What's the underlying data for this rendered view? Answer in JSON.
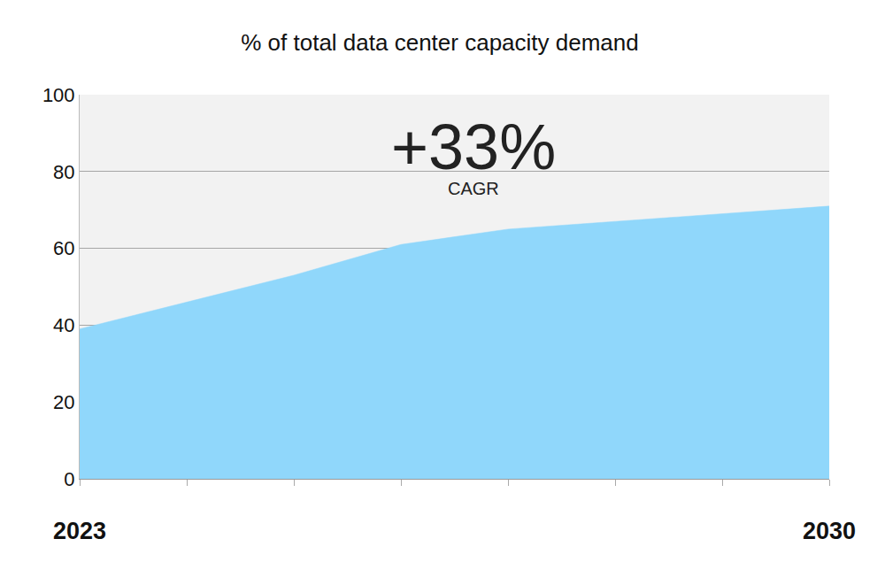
{
  "chart_data": {
    "type": "area",
    "title": "% of total data center capacity demand",
    "categories": [
      "2023",
      null,
      null,
      null,
      null,
      null,
      null,
      "2030"
    ],
    "values": [
      39,
      46,
      53,
      61,
      65,
      67,
      69,
      71
    ],
    "color": "#90d7fb",
    "ylim": [
      0,
      100
    ],
    "yticks": [
      0,
      20,
      40,
      60,
      80,
      100
    ],
    "grid": true,
    "annotations": [
      {
        "text": "+33%"
      },
      {
        "text": "CAGR"
      }
    ]
  }
}
